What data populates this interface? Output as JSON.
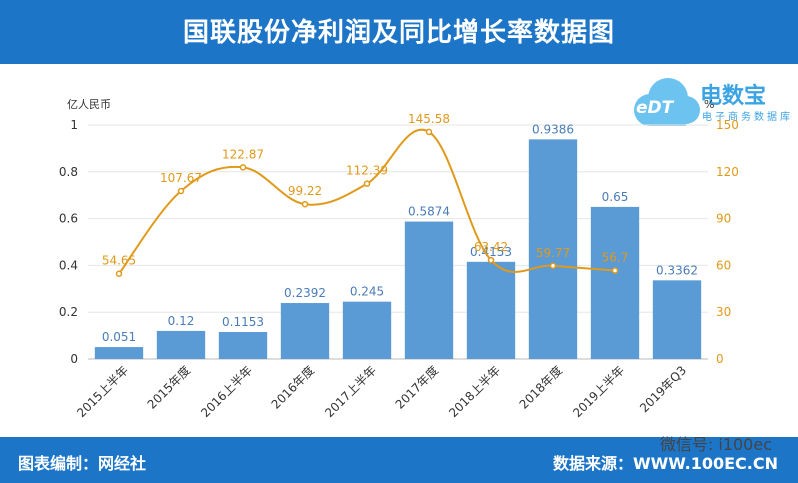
{
  "header": {
    "title": "国联股份净利润及同比增长率数据图"
  },
  "footer": {
    "left": "图表编制：网经社",
    "right": "数据来源：WWW.100EC.CN",
    "wechat": "微信号: i100ec"
  },
  "logo": {
    "cloud_text": "eDT",
    "name": "电数宝",
    "subtitle": "电子商务数据库"
  },
  "colors": {
    "banner": "#1d75c8",
    "bar": "#5b9bd5",
    "line": "#e09a1b",
    "bar_label": "#4a7cb8",
    "line_label": "#e09a1b"
  },
  "chart_data": {
    "type": "bar+line",
    "title": "国联股份净利润及同比增长率数据图",
    "ylabel": "亿人民币",
    "y2label": "%",
    "ylim": [
      0,
      1
    ],
    "y2lim": [
      0,
      150
    ],
    "yticks": [
      "0",
      "0.2",
      "0.4",
      "0.6",
      "0.8",
      "1"
    ],
    "y2ticks": [
      "0",
      "30",
      "60",
      "90",
      "120",
      "150"
    ],
    "grid": true,
    "categories": [
      "2015上半年",
      "2015年度",
      "2016上半年",
      "2016年度",
      "2017上半年",
      "2017年度",
      "2018上半年",
      "2018年度",
      "2019上半年",
      "2019年Q3"
    ],
    "series": [
      {
        "name": "净利润",
        "type": "bar",
        "axis": "left",
        "values": [
          0.051,
          0.12,
          0.1153,
          0.2392,
          0.245,
          0.5874,
          0.4153,
          0.9386,
          0.65,
          0.3362
        ],
        "labels": [
          "0.051",
          "0.12",
          "0.1153",
          "0.2392",
          "0.245",
          "0.5874",
          "0.4153",
          "0.9386",
          "0.65",
          "0.3362"
        ]
      },
      {
        "name": "同比增长率",
        "type": "line",
        "axis": "right",
        "values": [
          54.65,
          107.67,
          122.87,
          99.22,
          112.39,
          145.58,
          63.42,
          59.77,
          56.7,
          null
        ],
        "labels": [
          "54.65",
          "107.67",
          "122.87",
          "99.22",
          "112.39",
          "145.58",
          "63.42",
          "59.77",
          "56.7",
          ""
        ]
      }
    ]
  }
}
